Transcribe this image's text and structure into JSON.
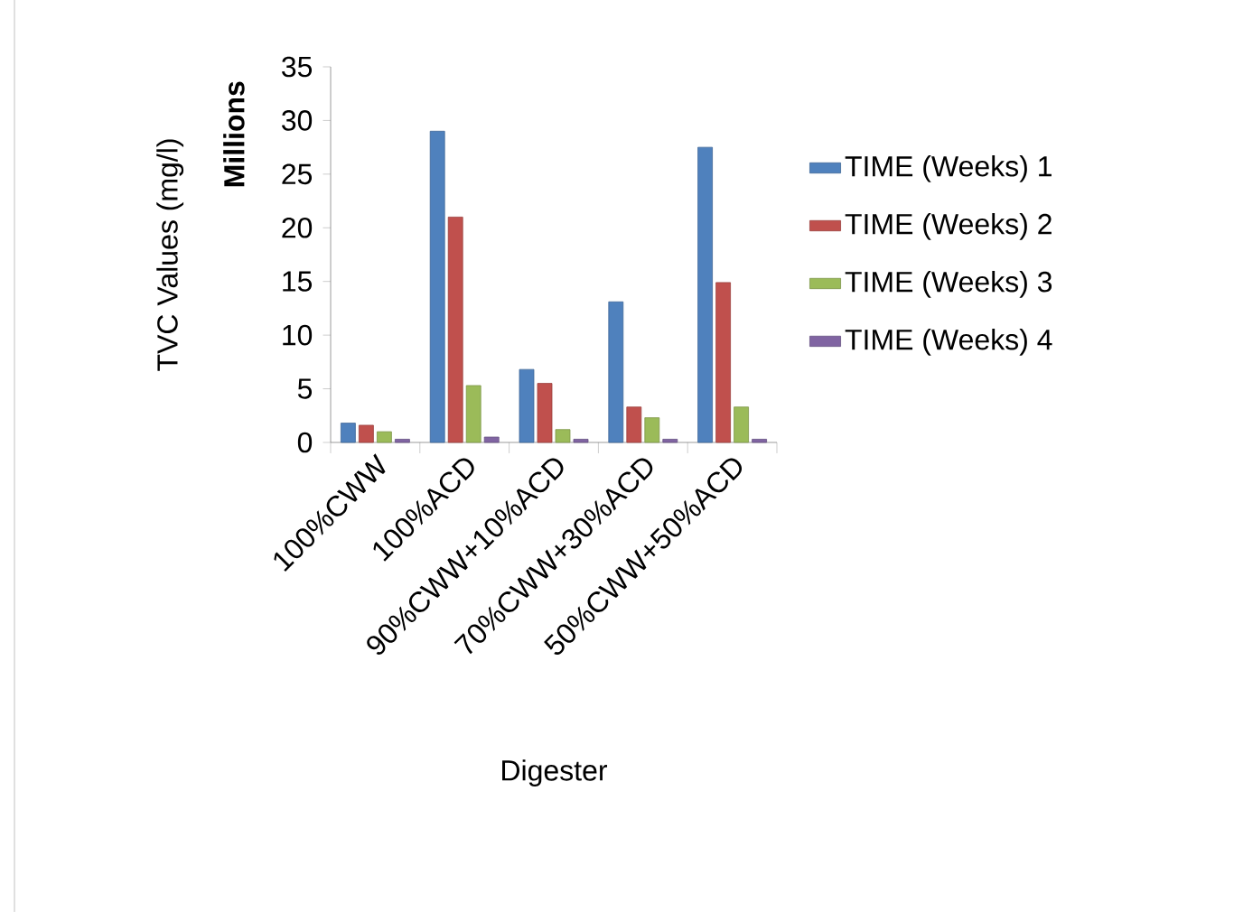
{
  "chart_data": {
    "type": "bar",
    "xlabel": "Digester",
    "ylabel": "TVC Values (mg/l)",
    "annotations": [
      "Millions"
    ],
    "categories": [
      "100%CWW",
      "100%ACD",
      "90%CWW+10%ACD",
      "70%CWW+30%ACD",
      "50%CWW+50%ACD"
    ],
    "series": [
      {
        "name": "TIME (Weeks) 1",
        "color": "#4f81bd",
        "values": [
          1.8,
          29.0,
          6.8,
          13.1,
          27.5
        ]
      },
      {
        "name": "TIME (Weeks) 2",
        "color": "#c0504d",
        "values": [
          1.6,
          21.0,
          5.5,
          3.3,
          14.9
        ]
      },
      {
        "name": "TIME (Weeks) 3",
        "color": "#9bbb59",
        "values": [
          1.0,
          5.3,
          1.2,
          2.3,
          3.3
        ]
      },
      {
        "name": "TIME (Weeks) 4",
        "color": "#8064a2",
        "values": [
          0.3,
          0.5,
          0.3,
          0.3,
          0.3
        ]
      }
    ],
    "ylim": [
      0,
      35
    ],
    "yticks": [
      0,
      5,
      10,
      15,
      20,
      25,
      30,
      35
    ],
    "grid": false,
    "legend": "right"
  }
}
